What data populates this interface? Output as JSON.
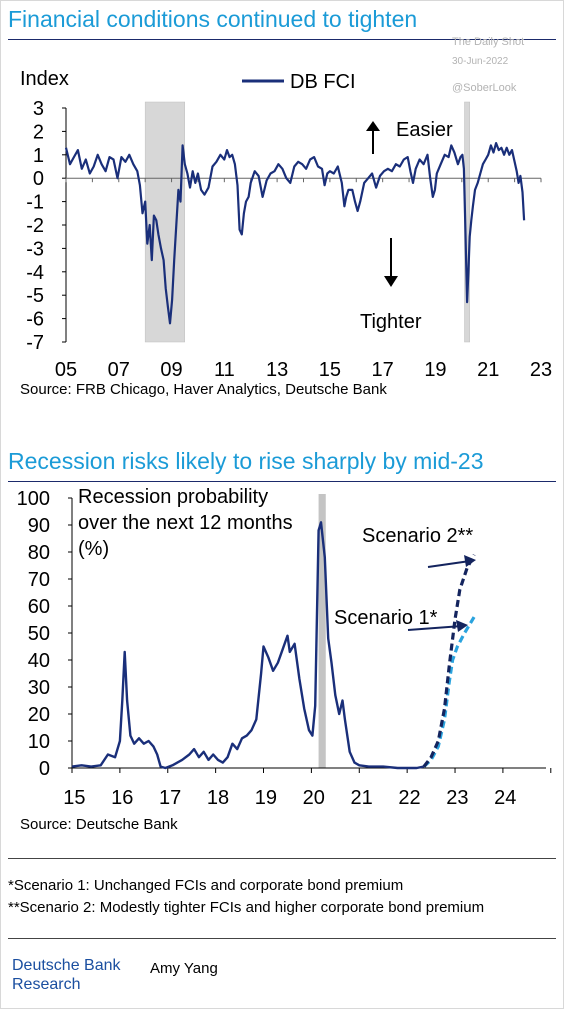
{
  "watermark": {
    "line1": "The Daily Shot",
    "line2": "30-Jun-2022",
    "line3": "@SoberLook"
  },
  "chart_data": [
    {
      "type": "line",
      "title": "Financial conditions continued to tighten",
      "ylabel": "Index",
      "series": [
        {
          "name": "DB FCI",
          "color": "#1a2f7a"
        }
      ],
      "xlim": [
        2005,
        2023
      ],
      "ylim": [
        -7,
        3
      ],
      "yticks": [
        "3",
        "2",
        "1",
        "0",
        "-1",
        "-2",
        "-3",
        "-4",
        "-5",
        "-6",
        "-7"
      ],
      "xticks": [
        "05",
        "07",
        "09",
        "11",
        "13",
        "15",
        "17",
        "19",
        "21",
        "23"
      ],
      "shaded_periods": [
        [
          2008.0,
          2009.5
        ],
        [
          2020.1,
          2020.3
        ]
      ],
      "annotations": {
        "up": "Easier",
        "down": "Tighter"
      },
      "source": "Source: FRB Chicago, Haver Analytics, Deutsche Bank",
      "points": [
        [
          2005.0,
          1.3
        ],
        [
          2005.15,
          0.6
        ],
        [
          2005.3,
          0.9
        ],
        [
          2005.45,
          1.2
        ],
        [
          2005.6,
          0.4
        ],
        [
          2005.75,
          0.8
        ],
        [
          2005.9,
          0.2
        ],
        [
          2006.05,
          0.5
        ],
        [
          2006.2,
          1.0
        ],
        [
          2006.35,
          0.6
        ],
        [
          2006.5,
          0.3
        ],
        [
          2006.65,
          0.9
        ],
        [
          2006.8,
          0.8
        ],
        [
          2006.95,
          0.0
        ],
        [
          2007.1,
          0.9
        ],
        [
          2007.25,
          0.7
        ],
        [
          2007.4,
          1.0
        ],
        [
          2007.55,
          0.6
        ],
        [
          2007.7,
          0.3
        ],
        [
          2007.8,
          -0.3
        ],
        [
          2007.9,
          -1.5
        ],
        [
          2008.0,
          -1.0
        ],
        [
          2008.08,
          -2.8
        ],
        [
          2008.17,
          -2.0
        ],
        [
          2008.25,
          -3.5
        ],
        [
          2008.33,
          -1.6
        ],
        [
          2008.42,
          -1.8
        ],
        [
          2008.5,
          -2.4
        ],
        [
          2008.6,
          -3.0
        ],
        [
          2008.7,
          -3.5
        ],
        [
          2008.78,
          -4.7
        ],
        [
          2008.86,
          -5.5
        ],
        [
          2008.94,
          -6.2
        ],
        [
          2009.02,
          -5.2
        ],
        [
          2009.1,
          -3.5
        ],
        [
          2009.18,
          -2.0
        ],
        [
          2009.26,
          -0.5
        ],
        [
          2009.34,
          -1.0
        ],
        [
          2009.42,
          1.4
        ],
        [
          2009.5,
          0.6
        ],
        [
          2009.6,
          0.2
        ],
        [
          2009.7,
          -0.4
        ],
        [
          2009.8,
          0.3
        ],
        [
          2009.9,
          -0.2
        ],
        [
          2010.0,
          0.2
        ],
        [
          2010.12,
          -0.5
        ],
        [
          2010.25,
          -0.7
        ],
        [
          2010.4,
          -0.4
        ],
        [
          2010.55,
          0.5
        ],
        [
          2010.7,
          0.7
        ],
        [
          2010.85,
          1.0
        ],
        [
          2011.0,
          0.8
        ],
        [
          2011.1,
          1.2
        ],
        [
          2011.2,
          0.9
        ],
        [
          2011.3,
          1.0
        ],
        [
          2011.4,
          0.6
        ],
        [
          2011.5,
          -0.3
        ],
        [
          2011.58,
          -2.2
        ],
        [
          2011.66,
          -2.4
        ],
        [
          2011.74,
          -1.5
        ],
        [
          2011.82,
          -1.0
        ],
        [
          2011.92,
          -0.8
        ],
        [
          2012.0,
          -0.2
        ],
        [
          2012.15,
          0.3
        ],
        [
          2012.3,
          0.1
        ],
        [
          2012.45,
          -0.8
        ],
        [
          2012.6,
          -0.1
        ],
        [
          2012.75,
          0.2
        ],
        [
          2012.9,
          0.3
        ],
        [
          2013.05,
          0.6
        ],
        [
          2013.2,
          0.4
        ],
        [
          2013.35,
          0.0
        ],
        [
          2013.5,
          -0.2
        ],
        [
          2013.65,
          0.5
        ],
        [
          2013.8,
          0.7
        ],
        [
          2013.95,
          0.6
        ],
        [
          2014.1,
          0.4
        ],
        [
          2014.25,
          0.8
        ],
        [
          2014.4,
          0.9
        ],
        [
          2014.55,
          0.5
        ],
        [
          2014.7,
          0.4
        ],
        [
          2014.8,
          -0.3
        ],
        [
          2014.9,
          0.2
        ],
        [
          2015.0,
          0.3
        ],
        [
          2015.15,
          0.2
        ],
        [
          2015.3,
          0.5
        ],
        [
          2015.45,
          -0.2
        ],
        [
          2015.55,
          -1.2
        ],
        [
          2015.62,
          -0.8
        ],
        [
          2015.7,
          -0.5
        ],
        [
          2015.85,
          -0.5
        ],
        [
          2015.95,
          -1.0
        ],
        [
          2016.05,
          -1.4
        ],
        [
          2016.15,
          -1.0
        ],
        [
          2016.3,
          -0.2
        ],
        [
          2016.45,
          0.0
        ],
        [
          2016.6,
          0.2
        ],
        [
          2016.75,
          -0.4
        ],
        [
          2016.9,
          0.1
        ],
        [
          2017.05,
          0.3
        ],
        [
          2017.2,
          0.4
        ],
        [
          2017.35,
          0.3
        ],
        [
          2017.5,
          0.6
        ],
        [
          2017.65,
          0.5
        ],
        [
          2017.8,
          0.8
        ],
        [
          2017.95,
          0.9
        ],
        [
          2018.05,
          0.3
        ],
        [
          2018.15,
          -0.2
        ],
        [
          2018.25,
          0.4
        ],
        [
          2018.4,
          0.8
        ],
        [
          2018.55,
          0.6
        ],
        [
          2018.7,
          1.0
        ],
        [
          2018.8,
          0.0
        ],
        [
          2018.9,
          -0.8
        ],
        [
          2018.98,
          -0.5
        ],
        [
          2019.05,
          0.2
        ],
        [
          2019.2,
          0.6
        ],
        [
          2019.35,
          1.0
        ],
        [
          2019.5,
          0.9
        ],
        [
          2019.6,
          1.4
        ],
        [
          2019.72,
          1.1
        ],
        [
          2019.85,
          0.6
        ],
        [
          2019.95,
          0.9
        ],
        [
          2020.02,
          1.0
        ],
        [
          2020.08,
          0.4
        ],
        [
          2020.12,
          -1.5
        ],
        [
          2020.16,
          -3.5
        ],
        [
          2020.2,
          -5.3
        ],
        [
          2020.25,
          -4.0
        ],
        [
          2020.3,
          -2.5
        ],
        [
          2020.36,
          -1.8
        ],
        [
          2020.42,
          -1.2
        ],
        [
          2020.5,
          -0.5
        ],
        [
          2020.6,
          -0.2
        ],
        [
          2020.7,
          0.2
        ],
        [
          2020.8,
          0.6
        ],
        [
          2020.9,
          0.8
        ],
        [
          2021.0,
          1.0
        ],
        [
          2021.1,
          1.4
        ],
        [
          2021.2,
          1.1
        ],
        [
          2021.3,
          1.5
        ],
        [
          2021.4,
          1.2
        ],
        [
          2021.5,
          1.3
        ],
        [
          2021.6,
          1.0
        ],
        [
          2021.7,
          1.3
        ],
        [
          2021.8,
          1.0
        ],
        [
          2021.9,
          1.2
        ],
        [
          2022.0,
          0.7
        ],
        [
          2022.08,
          0.3
        ],
        [
          2022.15,
          -0.2
        ],
        [
          2022.22,
          0.1
        ],
        [
          2022.3,
          -0.6
        ],
        [
          2022.36,
          -1.8
        ]
      ]
    },
    {
      "type": "line",
      "title": "Recession risks likely to rise sharply by mid-23",
      "ylabel": "Recession probability over the next 12 months (%)",
      "ylabel_lines": [
        "Recession probability",
        "over the next 12 months",
        "(%)"
      ],
      "xlim": [
        2015,
        2024.9
      ],
      "ylim": [
        0,
        100
      ],
      "yticks": [
        "100",
        "90",
        "80",
        "70",
        "60",
        "50",
        "40",
        "30",
        "20",
        "10",
        "0"
      ],
      "xticks": [
        "15",
        "16",
        "17",
        "18",
        "19",
        "20",
        "21",
        "22",
        "23",
        "24"
      ],
      "shaded_periods": [
        [
          2020.15,
          2020.3
        ]
      ],
      "source": "Source: Deutsche Bank",
      "series": [
        {
          "name": "",
          "color": "#1a2f7a",
          "style": "solid",
          "points": [
            [
              2015.0,
              0.5
            ],
            [
              2015.2,
              1
            ],
            [
              2015.4,
              0.5
            ],
            [
              2015.6,
              1
            ],
            [
              2015.75,
              5
            ],
            [
              2015.9,
              4
            ],
            [
              2016.0,
              10
            ],
            [
              2016.05,
              25
            ],
            [
              2016.1,
              43
            ],
            [
              2016.15,
              25
            ],
            [
              2016.22,
              12
            ],
            [
              2016.3,
              9
            ],
            [
              2016.4,
              11
            ],
            [
              2016.5,
              9
            ],
            [
              2016.6,
              10
            ],
            [
              2016.7,
              8
            ],
            [
              2016.78,
              5
            ],
            [
              2016.85,
              0.5
            ],
            [
              2016.95,
              0
            ],
            [
              2017.1,
              1
            ],
            [
              2017.3,
              3
            ],
            [
              2017.45,
              5
            ],
            [
              2017.55,
              7
            ],
            [
              2017.65,
              4
            ],
            [
              2017.75,
              6
            ],
            [
              2017.85,
              3
            ],
            [
              2017.95,
              5
            ],
            [
              2018.05,
              3
            ],
            [
              2018.15,
              2
            ],
            [
              2018.25,
              4
            ],
            [
              2018.35,
              9
            ],
            [
              2018.45,
              7
            ],
            [
              2018.55,
              11
            ],
            [
              2018.65,
              12
            ],
            [
              2018.75,
              14
            ],
            [
              2018.85,
              18
            ],
            [
              2018.95,
              35
            ],
            [
              2019.0,
              45
            ],
            [
              2019.1,
              41
            ],
            [
              2019.2,
              36
            ],
            [
              2019.3,
              39
            ],
            [
              2019.4,
              44
            ],
            [
              2019.5,
              49
            ],
            [
              2019.55,
              43
            ],
            [
              2019.65,
              46
            ],
            [
              2019.75,
              33
            ],
            [
              2019.85,
              22
            ],
            [
              2019.95,
              14
            ],
            [
              2020.02,
              12
            ],
            [
              2020.08,
              23
            ],
            [
              2020.15,
              88
            ],
            [
              2020.2,
              91
            ],
            [
              2020.28,
              78
            ],
            [
              2020.35,
              48
            ],
            [
              2020.42,
              39
            ],
            [
              2020.5,
              27
            ],
            [
              2020.58,
              20
            ],
            [
              2020.65,
              25
            ],
            [
              2020.7,
              18
            ],
            [
              2020.8,
              6
            ],
            [
              2020.9,
              2
            ],
            [
              2021.0,
              1
            ],
            [
              2021.2,
              0.5
            ],
            [
              2021.5,
              0.5
            ],
            [
              2021.8,
              0
            ],
            [
              2022.2,
              0
            ],
            [
              2022.35,
              0.5
            ]
          ]
        },
        {
          "name": "Scenario 1*",
          "color": "#2aa3de",
          "style": "dashed",
          "points": [
            [
              2022.35,
              0.5
            ],
            [
              2022.5,
              3
            ],
            [
              2022.65,
              8
            ],
            [
              2022.78,
              18
            ],
            [
              2022.88,
              32
            ],
            [
              2022.95,
              40
            ],
            [
              2023.05,
              45
            ],
            [
              2023.2,
              50
            ],
            [
              2023.4,
              56
            ]
          ]
        },
        {
          "name": "Scenario 2**",
          "color": "#14245e",
          "style": "dashed",
          "points": [
            [
              2022.35,
              0.5
            ],
            [
              2022.5,
              4
            ],
            [
              2022.65,
              10
            ],
            [
              2022.78,
              22
            ],
            [
              2022.88,
              38
            ],
            [
              2023.0,
              55
            ],
            [
              2023.1,
              66
            ],
            [
              2023.25,
              74
            ],
            [
              2023.4,
              79
            ]
          ]
        }
      ]
    }
  ],
  "footnotes": {
    "n1": "*Scenario 1: Unchanged FCIs and corporate bond premium",
    "n2": "**Scenario 2: Modestly tighter FCIs and higher corporate bond premium"
  },
  "brand": {
    "line1": "Deutsche Bank",
    "line2": "Research"
  },
  "author": "Amy Yang"
}
